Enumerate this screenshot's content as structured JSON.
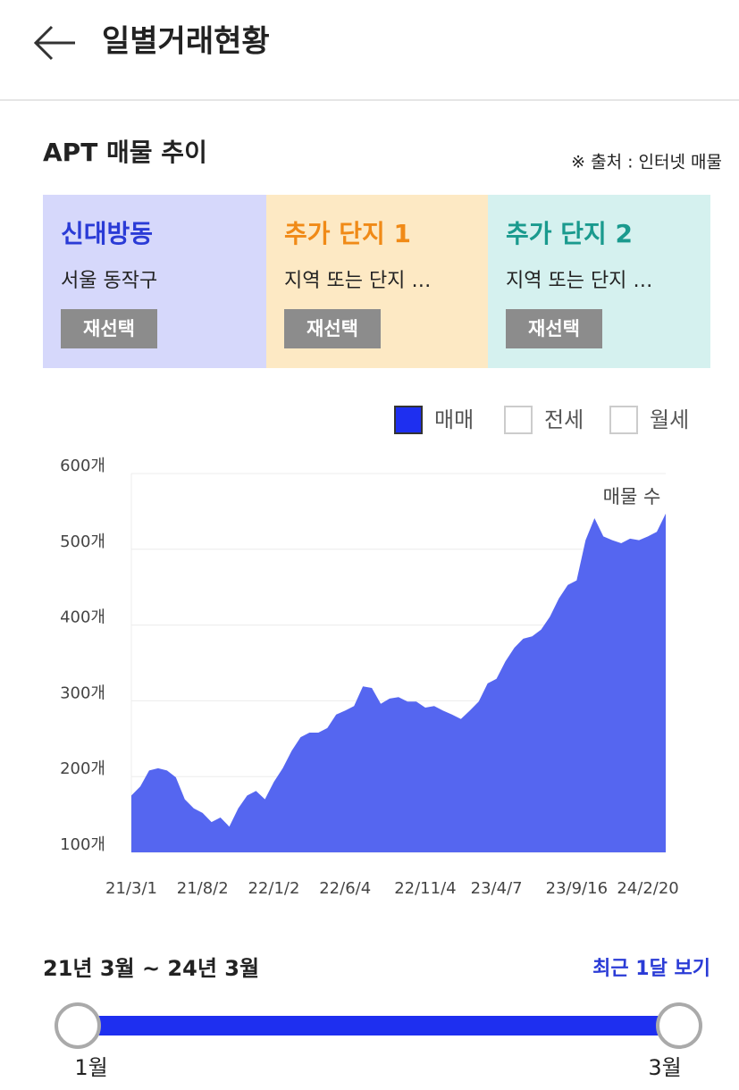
{
  "header": {
    "title": "일별거래현황"
  },
  "section": {
    "title": "APT 매물 추이",
    "source": "※ 출처 : 인터넷 매물"
  },
  "cards": [
    {
      "title": "신대방동",
      "subtitle": "서울 동작구",
      "button": "재선택",
      "color": "#2a3bd6",
      "background": "#d6d8fb"
    },
    {
      "title": "추가 단지 1",
      "subtitle": "지역 또는 단지 …",
      "button": "재선택",
      "color": "#f08a17",
      "background": "#fde9c4"
    },
    {
      "title": "추가 단지 2",
      "subtitle": "지역 또는 단지 …",
      "button": "재선택",
      "color": "#1a9a8e",
      "background": "#d5f1ef"
    }
  ],
  "filters": [
    {
      "label": "매매",
      "checked": true
    },
    {
      "label": "전세",
      "checked": false
    },
    {
      "label": "월세",
      "checked": false
    }
  ],
  "chart_data": {
    "type": "area",
    "annotation": "매물 수",
    "color": "#5566f0",
    "grid": true,
    "categories": [
      "21/3/1",
      null,
      null,
      null,
      null,
      null,
      null,
      null,
      "21/8/2",
      null,
      null,
      null,
      null,
      null,
      null,
      null,
      "22/1/2",
      null,
      null,
      null,
      null,
      null,
      null,
      null,
      "22/6/4",
      null,
      null,
      null,
      null,
      null,
      null,
      null,
      null,
      "22/11/4",
      null,
      null,
      null,
      null,
      null,
      null,
      null,
      "23/4/7",
      null,
      null,
      null,
      null,
      null,
      null,
      null,
      null,
      "23/9/16",
      null,
      null,
      null,
      null,
      null,
      null,
      null,
      "24/2/20",
      null,
      null
    ],
    "values": [
      175,
      187,
      208,
      211,
      208,
      199,
      170,
      158,
      152,
      140,
      146,
      134,
      158,
      175,
      181,
      170,
      193,
      211,
      234,
      252,
      258,
      258,
      264,
      282,
      287,
      293,
      319,
      317,
      296,
      303,
      305,
      299,
      299,
      291,
      293,
      287,
      282,
      276,
      287,
      299,
      323,
      329,
      352,
      370,
      382,
      385,
      394,
      411,
      435,
      453,
      459,
      512,
      541,
      517,
      512,
      508,
      514,
      512,
      517,
      523,
      547
    ],
    "ylim": [
      100,
      600
    ],
    "yticks": [
      {
        "value": 100,
        "label": "100개"
      },
      {
        "value": 200,
        "label": "200개"
      },
      {
        "value": 300,
        "label": "300개"
      },
      {
        "value": 400,
        "label": "400개"
      },
      {
        "value": 500,
        "label": "500개"
      },
      {
        "value": 600,
        "label": "600개"
      }
    ]
  },
  "range": {
    "label": "21년 3월 ~ 24년 3월",
    "link": "최근 1달 보기",
    "start": "1월",
    "end": "3월"
  }
}
